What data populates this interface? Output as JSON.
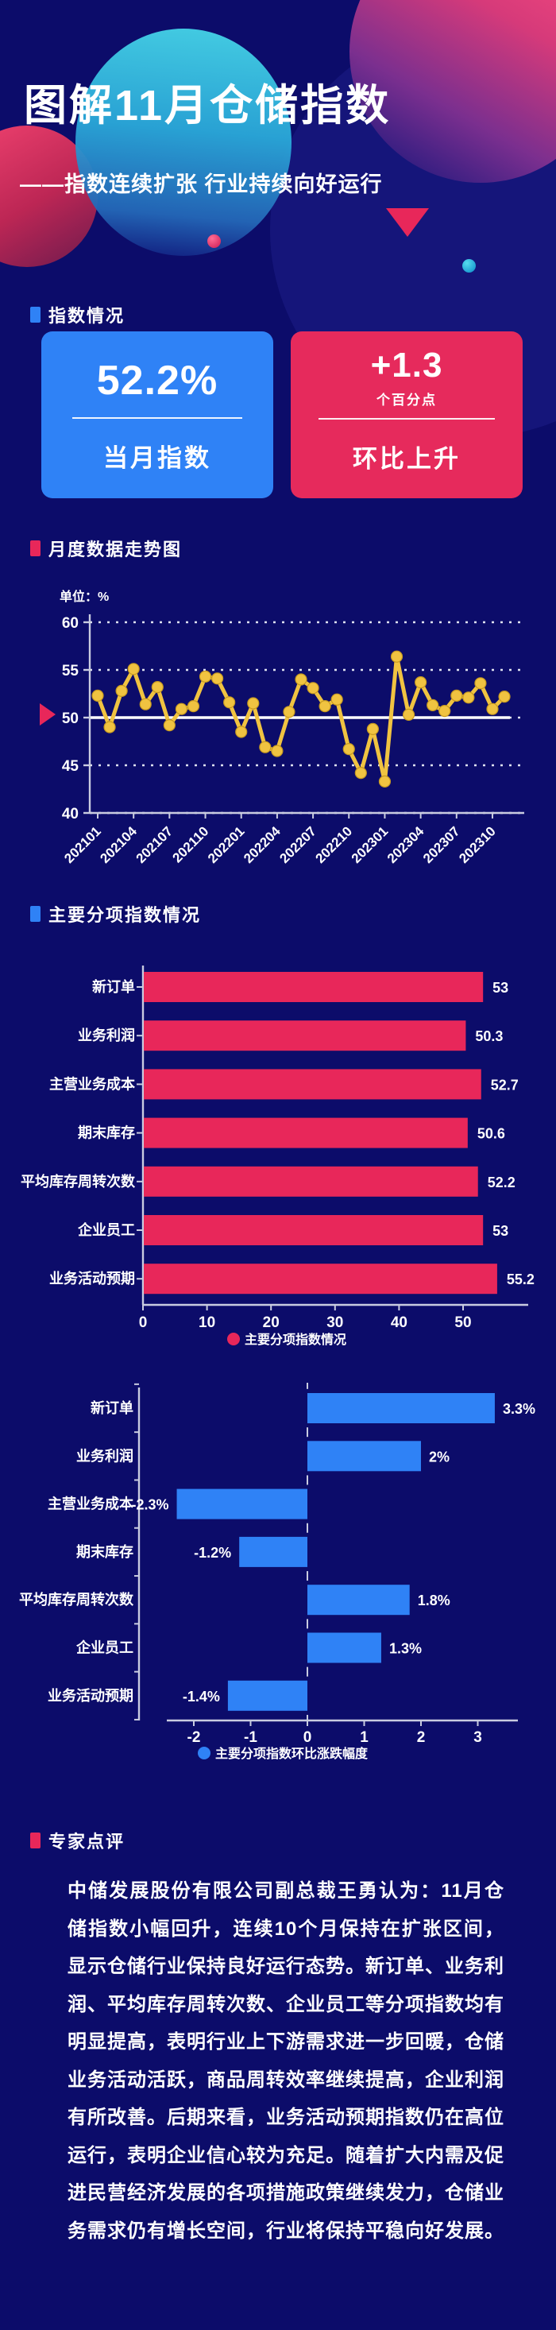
{
  "header": {
    "title": "图解11月仓储指数",
    "subtitle": "——指数连续扩张 行业持续向好运行"
  },
  "sections": [
    {
      "id": "index-overview",
      "label": "指数情况"
    },
    {
      "id": "monthly-trend",
      "label": "月度数据走势图"
    },
    {
      "id": "sub-indices",
      "label": "主要分项指数情况"
    },
    {
      "id": "expert-comment",
      "label": "专家点评"
    }
  ],
  "cards": {
    "current": {
      "value": "52.2%",
      "label": "当月指数"
    },
    "change": {
      "value": "+1.3",
      "unit": "个百分点",
      "label": "环比上升"
    }
  },
  "colors": {
    "background": "#0c0c6a",
    "accent_blue": "#2f82f6",
    "accent_crimson": "#e8275a",
    "line_yellow": "#f0c341",
    "axis_gray": "#c9cce0",
    "grid_dash": "#dfe2f0",
    "text_white": "#ffffff"
  },
  "chart_data": [
    {
      "type": "line",
      "title": "月度数据走势图",
      "unit_label": "单位：%",
      "x": [
        "202101",
        "202102",
        "202103",
        "202104",
        "202105",
        "202106",
        "202107",
        "202108",
        "202109",
        "202110",
        "202111",
        "202112",
        "202201",
        "202202",
        "202203",
        "202204",
        "202205",
        "202206",
        "202207",
        "202208",
        "202209",
        "202210",
        "202211",
        "202212",
        "202301",
        "202302",
        "202303",
        "202304",
        "202305",
        "202306",
        "202307",
        "202308",
        "202309",
        "202310",
        "202311"
      ],
      "x_tick_labels_shown": [
        "202101",
        "202104",
        "202107",
        "202110",
        "202201",
        "202204",
        "202207",
        "202210",
        "202301",
        "202304",
        "202307",
        "202310"
      ],
      "values": [
        52.3,
        49.0,
        52.8,
        55.1,
        51.4,
        53.2,
        49.2,
        50.9,
        51.2,
        54.3,
        54.1,
        51.6,
        48.5,
        51.5,
        46.9,
        46.5,
        50.6,
        54.0,
        53.1,
        51.2,
        51.9,
        46.7,
        44.2,
        48.8,
        43.3,
        56.4,
        50.3,
        53.7,
        51.3,
        50.7,
        52.3,
        52.1,
        53.6,
        50.9,
        52.2
      ],
      "ylim": [
        40,
        60
      ],
      "yticks": [
        60,
        55,
        50,
        45,
        40
      ],
      "reference_line": 50,
      "grid": "dashed",
      "line_color": "#f0c341"
    },
    {
      "type": "bar",
      "orientation": "horizontal",
      "categories": [
        "新订单",
        "业务利润",
        "主营业务成本",
        "期末库存",
        "平均库存周转次数",
        "企业员工",
        "业务活动预期"
      ],
      "values": [
        53,
        50.3,
        52.7,
        50.6,
        52.2,
        53,
        55.2
      ],
      "value_labels": [
        "53",
        "50.3",
        "52.7",
        "50.6",
        "52.2",
        "53",
        "55.2"
      ],
      "xticks": [
        0,
        10,
        20,
        30,
        40,
        50
      ],
      "xlim": [
        0,
        57
      ],
      "legend": "主要分项指数情况",
      "bar_color": "#e8275a"
    },
    {
      "type": "bar",
      "orientation": "horizontal",
      "categories": [
        "新订单",
        "业务利润",
        "主营业务成本",
        "期末库存",
        "平均库存周转次数",
        "企业员工",
        "业务活动预期"
      ],
      "values": [
        3.3,
        2,
        -2.3,
        -1.2,
        1.8,
        1.3,
        -1.4
      ],
      "value_labels": [
        "3.3%",
        "2%",
        "-2.3%",
        "-1.2%",
        "1.8%",
        "1.3%",
        "-1.4%"
      ],
      "xticks": [
        -2,
        -1,
        0,
        1,
        2,
        3
      ],
      "xlim": [
        -2.6,
        3.5
      ],
      "legend": "主要分项指数环比涨跌幅度",
      "bar_color": "#2f82f6"
    }
  ],
  "expert_comment": {
    "text": "中储发展股份有限公司副总裁王勇认为：11月仓储指数小幅回升，连续10个月保持在扩张区间，显示仓储行业保持良好运行态势。新订单、业务利润、平均库存周转次数、企业员工等分项指数均有明显提高，表明行业上下游需求进一步回暖，仓储业务活动活跃，商品周转效率继续提高，企业利润有所改善。后期来看，业务活动预期指数仍在高位运行，表明企业信心较为充足。随着扩大内需及促进民营经济发展的各项措施政策继续发力，仓储业务需求仍有增长空间，行业将保持平稳向好发展。"
  }
}
